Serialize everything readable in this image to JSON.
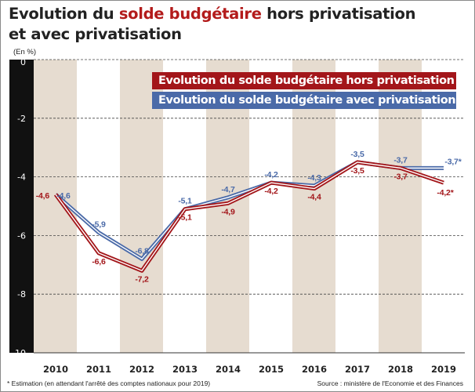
{
  "title": {
    "line1_part1": "Evolution du ",
    "line1_highlight": "solde budgétaire",
    "line1_part2": " hors privatisation",
    "line2": "et avec privatisation"
  },
  "unit_label": "(En %)",
  "footnote": "* Estimation (en attendant l'arrêté des comptes nationaux pour 2019)",
  "source": "Source : ministère de l'Economie et des Finances",
  "colors": {
    "red_series": "#a3161a",
    "blue_series": "#4a6aa8",
    "band": "#e6dcd0",
    "y_axis_bar": "#111111"
  },
  "chart_data": {
    "type": "line",
    "title": "Evolution du solde budgétaire hors privatisation et avec privatisation",
    "ylabel": "(En %)",
    "xlabel": "",
    "categories": [
      "2010",
      "2011",
      "2012",
      "2013",
      "2014",
      "2015",
      "2016",
      "2017",
      "2018",
      "2019"
    ],
    "ylim": [
      -10,
      0
    ],
    "yticks": [
      "0",
      "-2",
      "-4",
      "-6",
      "-8",
      "-10"
    ],
    "ytick_values": [
      0,
      -2,
      -4,
      -6,
      -8,
      -10
    ],
    "grid": "dashed horizontal",
    "series": [
      {
        "name": "Evolution du solde budgétaire hors privatisation",
        "color": "#a3161a",
        "values": [
          -4.6,
          -6.6,
          -7.2,
          -5.1,
          -4.9,
          -4.2,
          -4.4,
          -3.5,
          -3.7,
          -4.2
        ],
        "labels": [
          "-4,6",
          "-6,6",
          "-7,2",
          "-5,1",
          "-4,9",
          "-4,2",
          "-4,4",
          "-3,5",
          "-3,7",
          "-4,2*"
        ]
      },
      {
        "name": "Evolution du solde budgétaire avec privatisation",
        "color": "#4a6aa8",
        "values": [
          -4.6,
          -5.9,
          -6.8,
          -5.1,
          -4.7,
          -4.2,
          -4.3,
          -3.5,
          -3.7,
          -3.7
        ],
        "labels": [
          "-4,6",
          "-5,9",
          "-6,8",
          "-5,1",
          "-4,7",
          "-4,2",
          "-4,3",
          "-3,5",
          "-3,7",
          "-3,7*"
        ]
      }
    ]
  }
}
